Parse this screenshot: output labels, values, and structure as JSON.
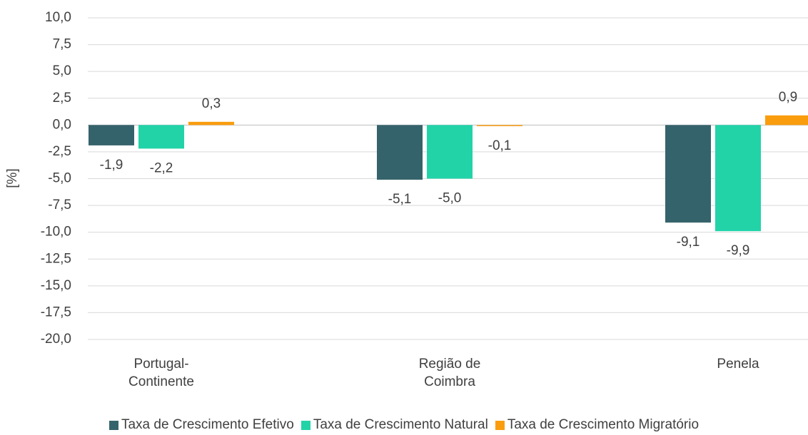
{
  "chart_data": {
    "type": "bar",
    "y_label": "[%]",
    "categories": [
      "Portugal-Continente",
      "Região de Coimbra",
      "Penela"
    ],
    "series": [
      {
        "name": "Taxa de Crescimento Efetivo",
        "color": "#35636b",
        "values": [
          -1.9,
          -5.1,
          -9.1
        ],
        "value_labels": [
          "-1,9",
          "-5,1",
          "-9,1"
        ]
      },
      {
        "name": "Taxa de Crescimento Natural",
        "color": "#22d3a8",
        "values": [
          -2.2,
          -5.0,
          -9.9
        ],
        "value_labels": [
          "-2,2",
          "-5,0",
          "-9,9"
        ]
      },
      {
        "name": "Taxa de Crescimento Migratório",
        "color": "#f99d0e",
        "values": [
          0.3,
          -0.1,
          0.9
        ],
        "value_labels": [
          "0,3",
          "-0,1",
          "0,9"
        ]
      }
    ],
    "ylim": [
      -20,
      10
    ],
    "yticks": [
      {
        "value": -20,
        "label": "-20,0"
      },
      {
        "value": -17.5,
        "label": "-17,5"
      },
      {
        "value": -15,
        "label": "-15,0"
      },
      {
        "value": -12.5,
        "label": "-12,5"
      },
      {
        "value": -10,
        "label": "-10,0"
      },
      {
        "value": -7.5,
        "label": "-7,5"
      },
      {
        "value": -5,
        "label": "-5,0"
      },
      {
        "value": -2.5,
        "label": "-2,5"
      },
      {
        "value": 0,
        "label": "0,0"
      },
      {
        "value": 2.5,
        "label": "2,5"
      },
      {
        "value": 5,
        "label": "5,0"
      },
      {
        "value": 7.5,
        "label": "7,5"
      },
      {
        "value": 10,
        "label": "10,0"
      }
    ],
    "grid": true
  }
}
